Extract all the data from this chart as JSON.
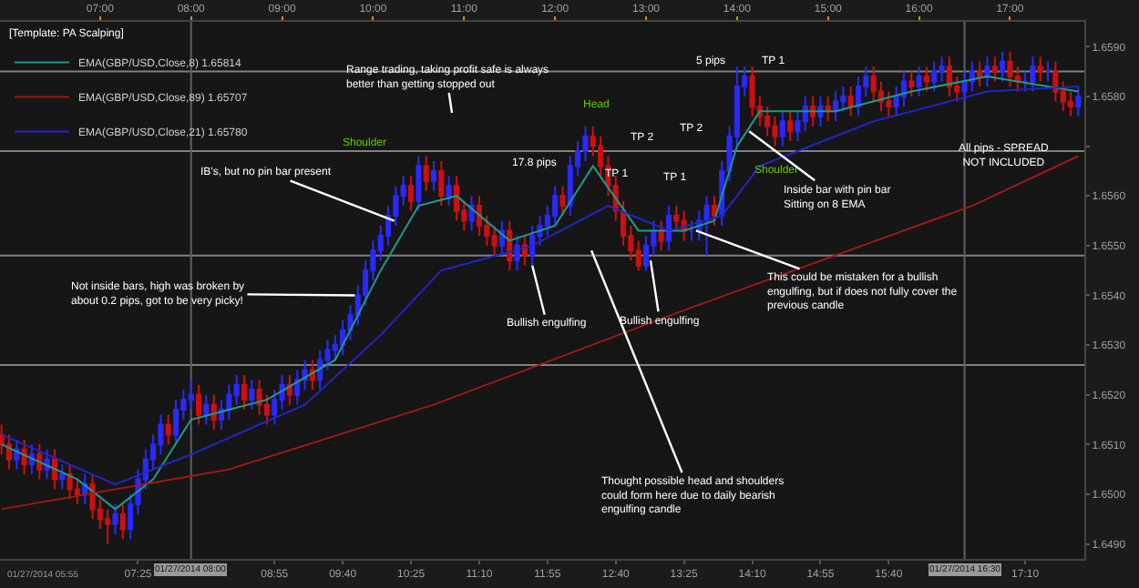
{
  "chart_data": {
    "type": "candlestick",
    "legend_title": "[Template: PA Scalping]",
    "legend": "top left",
    "grid": false,
    "colors": [
      "#cc1010",
      "#cc1010",
      "#2a2aff",
      "#cc1010",
      "#2a2aff",
      "#cc1010",
      "#2a2aff",
      "#cc1010",
      "#2a2aff",
      "#cc1010",
      "#cc1010",
      "#2a2aff",
      "#cc1010",
      "#cc1010",
      "#cc1010",
      "#2a2aff",
      "#cc1010",
      "#2a2aff",
      "#2a2aff",
      "#2a2aff",
      "#2a2aff",
      "#2a2aff",
      "#cc1010",
      "#2a2aff",
      "#2a2aff",
      "#2a2aff",
      "#cc1010",
      "#2a2aff",
      "#cc1010",
      "#2a2aff",
      "#2a2aff",
      "#2a2aff",
      "#cc1010",
      "#2a2aff",
      "#cc1010",
      "#cc1010",
      "#2a2aff",
      "#2a2aff",
      "#cc1010",
      "#2a2aff",
      "#2a2aff",
      "#cc1010",
      "#2a2aff",
      "#2a2aff",
      "#2a2aff",
      "#2a2aff",
      "#2a2aff",
      "#2a2aff",
      "#2a2aff",
      "#2a2aff",
      "#2a2aff",
      "#2a2aff",
      "#2a2aff",
      "#2a2aff",
      "#cc1010",
      "#2a2aff",
      "#cc1010",
      "#2a2aff",
      "#cc1010",
      "#2a2aff",
      "#cc1010",
      "#cc1010",
      "#2a2aff",
      "#cc1010",
      "#cc1010",
      "#cc1010",
      "#2a2aff",
      "#cc1010",
      "#2a2aff",
      "#cc1010",
      "#2a2aff",
      "#2a2aff",
      "#2a2aff",
      "#2a2aff",
      "#cc1010",
      "#2a2aff",
      "#2a2aff",
      "#2a2aff",
      "#cc1010",
      "#cc1010",
      "#cc1010",
      "#cc1010",
      "#cc1010",
      "#cc1010",
      "#cc1010",
      "#2a2aff",
      "#2a2aff",
      "#cc1010",
      "#2a2aff",
      "#cc1010",
      "#cc1010",
      "#2a2aff",
      "#2a2aff",
      "#2a2aff",
      "#cc1010",
      "#2a2aff",
      "#2a2aff",
      "#2a2aff",
      "#2a2aff",
      "#cc1010",
      "#cc1010",
      "#cc1010",
      "#cc1010",
      "#2a2aff",
      "#cc1010",
      "#2a2aff",
      "#2a2aff",
      "#cc1010",
      "#2a2aff",
      "#cc1010",
      "#2a2aff",
      "#2a2aff",
      "#cc1010",
      "#2a2aff",
      "#2a2aff",
      "#cc1010",
      "#cc1010",
      "#cc1010",
      "#2a2aff",
      "#2a2aff",
      "#cc1010",
      "#2a2aff",
      "#cc1010",
      "#2a2aff",
      "#2a2aff",
      "#cc1010",
      "#cc1010",
      "#2a2aff",
      "#2a2aff",
      "#cc1010",
      "#2a2aff",
      "#cc1010",
      "#2a2aff",
      "#cc1010",
      "#cc1010",
      "#2a2aff",
      "#2a2aff",
      "#cc1010",
      "#2a2aff",
      "#cc1010",
      "#cc1010",
      "#cc1010",
      "#2a2aff"
    ],
    "x": [
      "2014-01-27T05:55",
      "2014-01-27T06:00",
      "2014-01-27T06:05",
      "2014-01-27T06:10",
      "2014-01-27T06:15",
      "2014-01-27T06:20",
      "2014-01-27T06:25",
      "2014-01-27T06:30",
      "2014-01-27T06:35",
      "2014-01-27T06:40",
      "2014-01-27T06:45",
      "2014-01-27T06:50",
      "2014-01-27T06:55",
      "2014-01-27T07:00",
      "2014-01-27T07:05",
      "2014-01-27T07:10",
      "2014-01-27T07:15",
      "2014-01-27T07:20",
      "2014-01-27T07:25",
      "2014-01-27T07:30",
      "2014-01-27T07:35",
      "2014-01-27T07:40",
      "2014-01-27T07:45",
      "2014-01-27T07:50",
      "2014-01-27T07:55",
      "2014-01-27T08:00",
      "2014-01-27T08:05",
      "2014-01-27T08:10",
      "2014-01-27T08:15",
      "2014-01-27T08:20",
      "2014-01-27T08:25",
      "2014-01-27T08:30",
      "2014-01-27T08:35",
      "2014-01-27T08:40",
      "2014-01-27T08:45",
      "2014-01-27T08:50",
      "2014-01-27T08:55",
      "2014-01-27T09:00",
      "2014-01-27T09:05",
      "2014-01-27T09:10",
      "2014-01-27T09:15",
      "2014-01-27T09:20",
      "2014-01-27T09:25",
      "2014-01-27T09:30",
      "2014-01-27T09:35",
      "2014-01-27T09:40",
      "2014-01-27T09:45",
      "2014-01-27T09:50",
      "2014-01-27T09:55",
      "2014-01-27T10:00",
      "2014-01-27T10:05",
      "2014-01-27T10:10",
      "2014-01-27T10:15",
      "2014-01-27T10:20",
      "2014-01-27T10:25",
      "2014-01-27T10:30",
      "2014-01-27T10:35",
      "2014-01-27T10:40",
      "2014-01-27T10:45",
      "2014-01-27T10:50",
      "2014-01-27T10:55",
      "2014-01-27T11:00",
      "2014-01-27T11:05",
      "2014-01-27T11:10",
      "2014-01-27T11:15",
      "2014-01-27T11:20",
      "2014-01-27T11:25",
      "2014-01-27T11:30",
      "2014-01-27T11:35",
      "2014-01-27T11:40",
      "2014-01-27T11:45",
      "2014-01-27T11:50",
      "2014-01-27T11:55",
      "2014-01-27T12:00",
      "2014-01-27T12:05",
      "2014-01-27T12:10",
      "2014-01-27T12:15",
      "2014-01-27T12:20",
      "2014-01-27T12:25",
      "2014-01-27T12:30",
      "2014-01-27T12:35",
      "2014-01-27T12:40",
      "2014-01-27T12:45",
      "2014-01-27T12:50",
      "2014-01-27T12:55",
      "2014-01-27T13:00",
      "2014-01-27T13:05",
      "2014-01-27T13:10",
      "2014-01-27T13:15",
      "2014-01-27T13:20",
      "2014-01-27T13:25",
      "2014-01-27T13:30",
      "2014-01-27T13:35",
      "2014-01-27T13:40",
      "2014-01-27T13:45",
      "2014-01-27T13:50",
      "2014-01-27T13:55",
      "2014-01-27T14:00",
      "2014-01-27T14:05",
      "2014-01-27T14:10",
      "2014-01-27T14:15",
      "2014-01-27T14:20",
      "2014-01-27T14:25",
      "2014-01-27T14:30",
      "2014-01-27T14:35",
      "2014-01-27T14:40",
      "2014-01-27T14:45",
      "2014-01-27T14:50",
      "2014-01-27T14:55",
      "2014-01-27T15:00",
      "2014-01-27T15:05",
      "2014-01-27T15:10",
      "2014-01-27T15:15",
      "2014-01-27T15:20",
      "2014-01-27T15:25",
      "2014-01-27T15:30",
      "2014-01-27T15:35",
      "2014-01-27T15:40",
      "2014-01-27T15:45",
      "2014-01-27T15:50",
      "2014-01-27T15:55",
      "2014-01-27T16:00",
      "2014-01-27T16:05",
      "2014-01-27T16:10",
      "2014-01-27T16:15",
      "2014-01-27T16:20",
      "2014-01-27T16:25",
      "2014-01-27T16:30",
      "2014-01-27T16:35",
      "2014-01-27T16:40",
      "2014-01-27T16:45",
      "2014-01-27T16:50",
      "2014-01-27T16:55",
      "2014-01-27T17:00",
      "2014-01-27T17:05",
      "2014-01-27T17:10",
      "2014-01-27T17:15",
      "2014-01-27T17:20",
      "2014-01-27T17:25",
      "2014-01-27T17:30",
      "2014-01-27T17:35",
      "2014-01-27T17:40",
      "2014-01-27T17:45"
    ],
    "ohlc": [
      [
        1.6512,
        1.6514,
        1.6508,
        1.651
      ],
      [
        1.651,
        1.6512,
        1.6505,
        1.6507
      ],
      [
        1.6507,
        1.6511,
        1.6505,
        1.6509
      ],
      [
        1.6509,
        1.6511,
        1.6504,
        1.6506
      ],
      [
        1.6506,
        1.651,
        1.6504,
        1.6508
      ],
      [
        1.6508,
        1.651,
        1.6503,
        1.6505
      ],
      [
        1.6505,
        1.6509,
        1.6503,
        1.6507
      ],
      [
        1.6507,
        1.6509,
        1.6501,
        1.6503
      ],
      [
        1.6503,
        1.6506,
        1.6501,
        1.6504
      ],
      [
        1.6504,
        1.6506,
        1.6499,
        1.6501
      ],
      [
        1.6501,
        1.6503,
        1.6498,
        1.65
      ],
      [
        1.65,
        1.6504,
        1.6498,
        1.6502
      ],
      [
        1.6502,
        1.6504,
        1.6495,
        1.6497
      ],
      [
        1.6497,
        1.6499,
        1.6493,
        1.6495
      ],
      [
        1.6495,
        1.6497,
        1.649,
        1.6494
      ],
      [
        1.6494,
        1.6498,
        1.6492,
        1.6496
      ],
      [
        1.6496,
        1.6498,
        1.6491,
        1.6493
      ],
      [
        1.6493,
        1.65,
        1.6491,
        1.6498
      ],
      [
        1.6498,
        1.6505,
        1.6496,
        1.6503
      ],
      [
        1.6503,
        1.6509,
        1.6501,
        1.6507
      ],
      [
        1.6507,
        1.6512,
        1.6505,
        1.651
      ],
      [
        1.651,
        1.6516,
        1.6508,
        1.6514
      ],
      [
        1.6514,
        1.6516,
        1.651,
        1.6512
      ],
      [
        1.6512,
        1.6519,
        1.651,
        1.6517
      ],
      [
        1.6517,
        1.6521,
        1.6515,
        1.6519
      ],
      [
        1.6519,
        1.6523,
        1.6517,
        1.652
      ],
      [
        1.652,
        1.6522,
        1.6514,
        1.6516
      ],
      [
        1.6516,
        1.652,
        1.6514,
        1.6518
      ],
      [
        1.6518,
        1.652,
        1.6513,
        1.6515
      ],
      [
        1.6515,
        1.6519,
        1.6513,
        1.6517
      ],
      [
        1.6517,
        1.6522,
        1.6515,
        1.652
      ],
      [
        1.652,
        1.6524,
        1.6518,
        1.6522
      ],
      [
        1.6522,
        1.6524,
        1.6517,
        1.6519
      ],
      [
        1.6519,
        1.6523,
        1.6517,
        1.6521
      ],
      [
        1.6521,
        1.6523,
        1.6516,
        1.6518
      ],
      [
        1.6518,
        1.652,
        1.6514,
        1.6516
      ],
      [
        1.6516,
        1.6521,
        1.6514,
        1.6519
      ],
      [
        1.6519,
        1.6524,
        1.6517,
        1.6522
      ],
      [
        1.6522,
        1.6524,
        1.6518,
        1.652
      ],
      [
        1.652,
        1.6525,
        1.6518,
        1.6523
      ],
      [
        1.6523,
        1.6527,
        1.6521,
        1.6525
      ],
      [
        1.6525,
        1.6527,
        1.6521,
        1.6523
      ],
      [
        1.6523,
        1.6529,
        1.6521,
        1.6527
      ],
      [
        1.6527,
        1.6531,
        1.6525,
        1.6529
      ],
      [
        1.6529,
        1.6532,
        1.6527,
        1.653
      ],
      [
        1.653,
        1.6535,
        1.6528,
        1.6533
      ],
      [
        1.6533,
        1.6538,
        1.6531,
        1.6536
      ],
      [
        1.6536,
        1.6542,
        1.6534,
        1.654
      ],
      [
        1.654,
        1.6547,
        1.6538,
        1.6545
      ],
      [
        1.6545,
        1.6551,
        1.6543,
        1.6549
      ],
      [
        1.6549,
        1.6554,
        1.6547,
        1.6552
      ],
      [
        1.6552,
        1.6558,
        1.655,
        1.6556
      ],
      [
        1.6556,
        1.6562,
        1.6554,
        1.656
      ],
      [
        1.656,
        1.6564,
        1.6558,
        1.6562
      ],
      [
        1.6562,
        1.6564,
        1.6557,
        1.6559
      ],
      [
        1.6559,
        1.6568,
        1.6557,
        1.6566
      ],
      [
        1.6566,
        1.6568,
        1.6561,
        1.6563
      ],
      [
        1.6563,
        1.6567,
        1.6561,
        1.6565
      ],
      [
        1.6565,
        1.6567,
        1.6558,
        1.656
      ],
      [
        1.656,
        1.6564,
        1.6558,
        1.6562
      ],
      [
        1.6562,
        1.6564,
        1.6555,
        1.6557
      ],
      [
        1.6557,
        1.6559,
        1.6553,
        1.6555
      ],
      [
        1.6555,
        1.656,
        1.6553,
        1.6558
      ],
      [
        1.6558,
        1.656,
        1.6552,
        1.6554
      ],
      [
        1.6554,
        1.6556,
        1.655,
        1.6552
      ],
      [
        1.6552,
        1.6554,
        1.6548,
        1.655
      ],
      [
        1.655,
        1.6555,
        1.6548,
        1.6553
      ],
      [
        1.6553,
        1.6555,
        1.6545,
        1.6547
      ],
      [
        1.6547,
        1.6552,
        1.6545,
        1.655
      ],
      [
        1.655,
        1.6552,
        1.6546,
        1.6548
      ],
      [
        1.6548,
        1.6554,
        1.6546,
        1.6552
      ],
      [
        1.6552,
        1.6556,
        1.655,
        1.6554
      ],
      [
        1.6554,
        1.6558,
        1.6552,
        1.6556
      ],
      [
        1.6556,
        1.6562,
        1.6554,
        1.656
      ],
      [
        1.656,
        1.6562,
        1.6556,
        1.6558
      ],
      [
        1.6558,
        1.6568,
        1.6556,
        1.6566
      ],
      [
        1.6566,
        1.6571,
        1.6564,
        1.6569
      ],
      [
        1.6569,
        1.6574,
        1.6567,
        1.6572
      ],
      [
        1.6572,
        1.6574,
        1.6568,
        1.657
      ],
      [
        1.657,
        1.6572,
        1.6564,
        1.6566
      ],
      [
        1.6566,
        1.6568,
        1.656,
        1.6562
      ],
      [
        1.6562,
        1.6564,
        1.6555,
        1.6557
      ],
      [
        1.6557,
        1.6559,
        1.655,
        1.6552
      ],
      [
        1.6552,
        1.6554,
        1.6547,
        1.6549
      ],
      [
        1.6549,
        1.6551,
        1.6545,
        1.6546
      ],
      [
        1.6546,
        1.6552,
        1.6545,
        1.655
      ],
      [
        1.655,
        1.6555,
        1.6548,
        1.6553
      ],
      [
        1.6553,
        1.6555,
        1.6549,
        1.6551
      ],
      [
        1.6551,
        1.6558,
        1.6549,
        1.6556
      ],
      [
        1.6556,
        1.6558,
        1.6553,
        1.6555
      ],
      [
        1.6555,
        1.6557,
        1.6551,
        1.6553
      ],
      [
        1.6553,
        1.6555,
        1.6551,
        1.6553
      ],
      [
        1.6553,
        1.6557,
        1.6551,
        1.6555
      ],
      [
        1.6555,
        1.656,
        1.6548,
        1.6558
      ],
      [
        1.6558,
        1.656,
        1.6554,
        1.6556
      ],
      [
        1.6556,
        1.6567,
        1.6554,
        1.6565
      ],
      [
        1.6565,
        1.6574,
        1.6563,
        1.6572
      ],
      [
        1.6572,
        1.6586,
        1.657,
        1.6582
      ],
      [
        1.6582,
        1.6586,
        1.658,
        1.6584
      ],
      [
        1.6584,
        1.6586,
        1.6576,
        1.6578
      ],
      [
        1.6578,
        1.658,
        1.6574,
        1.6576
      ],
      [
        1.6576,
        1.6578,
        1.6572,
        1.6574
      ],
      [
        1.6574,
        1.6576,
        1.657,
        1.6572
      ],
      [
        1.6572,
        1.6577,
        1.657,
        1.6575
      ],
      [
        1.6575,
        1.6577,
        1.6571,
        1.6573
      ],
      [
        1.6573,
        1.6577,
        1.6571,
        1.6575
      ],
      [
        1.6575,
        1.658,
        1.6573,
        1.6578
      ],
      [
        1.6578,
        1.658,
        1.6574,
        1.6576
      ],
      [
        1.6576,
        1.658,
        1.6574,
        1.6578
      ],
      [
        1.6578,
        1.658,
        1.6575,
        1.6577
      ],
      [
        1.6577,
        1.6581,
        1.6575,
        1.6579
      ],
      [
        1.6579,
        1.6582,
        1.6577,
        1.658
      ],
      [
        1.658,
        1.6582,
        1.6576,
        1.6578
      ],
      [
        1.6578,
        1.6584,
        1.6576,
        1.6582
      ],
      [
        1.6582,
        1.6586,
        1.658,
        1.6584
      ],
      [
        1.6584,
        1.6586,
        1.6579,
        1.6581
      ],
      [
        1.6581,
        1.6583,
        1.6577,
        1.6579
      ],
      [
        1.6579,
        1.6581,
        1.6576,
        1.6578
      ],
      [
        1.6578,
        1.6582,
        1.6576,
        1.658
      ],
      [
        1.658,
        1.6585,
        1.6578,
        1.6583
      ],
      [
        1.6583,
        1.6585,
        1.658,
        1.6582
      ],
      [
        1.6582,
        1.6586,
        1.658,
        1.6584
      ],
      [
        1.6584,
        1.6586,
        1.6581,
        1.6583
      ],
      [
        1.6583,
        1.6587,
        1.6581,
        1.6585
      ],
      [
        1.6585,
        1.6588,
        1.6583,
        1.6586
      ],
      [
        1.6586,
        1.6588,
        1.658,
        1.6582
      ],
      [
        1.6582,
        1.6584,
        1.6579,
        1.6581
      ],
      [
        1.6581,
        1.6585,
        1.6579,
        1.6583
      ],
      [
        1.6583,
        1.6587,
        1.6581,
        1.6585
      ],
      [
        1.6585,
        1.6587,
        1.6582,
        1.6584
      ],
      [
        1.6584,
        1.6588,
        1.6582,
        1.6586
      ],
      [
        1.6586,
        1.6588,
        1.6583,
        1.6585
      ],
      [
        1.6585,
        1.6589,
        1.6583,
        1.6587
      ],
      [
        1.6587,
        1.6589,
        1.6582,
        1.6584
      ],
      [
        1.6584,
        1.6586,
        1.6581,
        1.6583
      ],
      [
        1.6583,
        1.6585,
        1.6581,
        1.6583
      ],
      [
        1.6583,
        1.6588,
        1.6581,
        1.6586
      ],
      [
        1.6586,
        1.6588,
        1.6583,
        1.6585
      ],
      [
        1.6585,
        1.6587,
        1.6583,
        1.6585
      ],
      [
        1.6585,
        1.6587,
        1.6579,
        1.6581
      ],
      [
        1.6581,
        1.6583,
        1.6577,
        1.6579
      ],
      [
        1.6579,
        1.6581,
        1.6576,
        1.6578
      ],
      [
        1.6578,
        1.6582,
        1.6576,
        1.658
      ]
    ],
    "series": [
      {
        "type": "line",
        "name": "EMA(GBP/USD,Close,8) 1.65814",
        "color": "#1f9a8a",
        "x": [
          "2014-01-27T05:55",
          "2014-01-27T06:45",
          "2014-01-27T07:10",
          "2014-01-27T07:35",
          "2014-01-27T08:00",
          "2014-01-27T08:50",
          "2014-01-27T09:35",
          "2014-01-27T10:05",
          "2014-01-27T10:30",
          "2014-01-27T10:55",
          "2014-01-27T11:30",
          "2014-01-27T12:00",
          "2014-01-27T12:25",
          "2014-01-27T12:55",
          "2014-01-27T13:25",
          "2014-01-27T13:45",
          "2014-01-27T14:00",
          "2014-01-27T14:15",
          "2014-01-27T15:05",
          "2014-01-27T15:55",
          "2014-01-27T16:45",
          "2014-01-27T17:45"
        ],
        "values": [
          1.651,
          1.6503,
          1.6497,
          1.6503,
          1.6515,
          1.6519,
          1.6527,
          1.6545,
          1.6558,
          1.656,
          1.6551,
          1.6554,
          1.6566,
          1.6553,
          1.6553,
          1.6555,
          1.657,
          1.6577,
          1.6577,
          1.6581,
          1.6584,
          1.6581
        ]
      },
      {
        "type": "line",
        "name": "EMA(GBP/USD,Close,89) 1.65707",
        "color": "#a01818",
        "x": [
          "2014-01-27T05:55",
          "2014-01-27T08:25",
          "2014-01-27T10:40",
          "2014-01-27T13:25",
          "2014-01-27T16:35",
          "2014-01-27T17:45"
        ],
        "values": [
          1.6497,
          1.6505,
          1.6518,
          1.6537,
          1.6558,
          1.6568
        ]
      },
      {
        "type": "line",
        "name": "EMA(GBP/USD,Close,21) 1.65780",
        "color": "#2424c8",
        "x": [
          "2014-01-27T05:55",
          "2014-01-27T07:10",
          "2014-01-27T08:00",
          "2014-01-27T09:15",
          "2014-01-27T10:05",
          "2014-01-27T10:45",
          "2014-01-27T11:45",
          "2014-01-27T12:35",
          "2014-01-27T13:15",
          "2014-01-27T13:50",
          "2014-01-27T14:15",
          "2014-01-27T15:30",
          "2014-01-27T16:45",
          "2014-01-27T17:45"
        ],
        "values": [
          1.6512,
          1.6502,
          1.6508,
          1.6518,
          1.6532,
          1.6545,
          1.655,
          1.6558,
          1.6553,
          1.6556,
          1.6566,
          1.6575,
          1.6581,
          1.6582
        ]
      }
    ],
    "xlim": [
      "2014-01-27T05:54",
      "2014-01-27T17:49"
    ],
    "xticks": [
      {
        "value": "2014-01-27T07:25",
        "label": "07:25"
      },
      {
        "value": "2014-01-27T08:55",
        "label": "08:55"
      },
      {
        "value": "2014-01-27T09:40",
        "label": "09:40"
      },
      {
        "value": "2014-01-27T10:25",
        "label": "10:25"
      },
      {
        "value": "2014-01-27T11:10",
        "label": "11:10"
      },
      {
        "value": "2014-01-27T11:55",
        "label": "11:55"
      },
      {
        "value": "2014-01-27T12:40",
        "label": "12:40"
      },
      {
        "value": "2014-01-27T13:25",
        "label": "13:25"
      },
      {
        "value": "2014-01-27T14:10",
        "label": "14:10"
      },
      {
        "value": "2014-01-27T14:55",
        "label": "14:55"
      },
      {
        "value": "2014-01-27T15:40",
        "label": "15:40"
      },
      {
        "value": "2014-01-27T17:10",
        "label": "17:10"
      }
    ],
    "x2lim": [
      "2014-01-27T05:54",
      "2014-01-27T17:49"
    ],
    "x2ticks": [
      {
        "value": "2014-01-27T07:00",
        "label": "07:00"
      },
      {
        "value": "2014-01-27T08:00",
        "label": "08:00"
      },
      {
        "value": "2014-01-27T09:00",
        "label": "09:00"
      },
      {
        "value": "2014-01-27T10:00",
        "label": "10:00"
      },
      {
        "value": "2014-01-27T11:00",
        "label": "11:00"
      },
      {
        "value": "2014-01-27T12:00",
        "label": "12:00"
      },
      {
        "value": "2014-01-27T13:00",
        "label": "13:00"
      },
      {
        "value": "2014-01-27T14:00",
        "label": "14:00"
      },
      {
        "value": "2014-01-27T15:00",
        "label": "15:00"
      },
      {
        "value": "2014-01-27T16:00",
        "label": "16:00"
      },
      {
        "value": "2014-01-27T17:00",
        "label": "17:00"
      }
    ],
    "ylim": [
      1.6487,
      1.6595
    ],
    "yticks": [
      {
        "value": 1.649,
        "label": "1.6490"
      },
      {
        "value": 1.65,
        "label": "1.6500"
      },
      {
        "value": 1.651,
        "label": "1.6510"
      },
      {
        "value": 1.652,
        "label": "1.6520"
      },
      {
        "value": 1.653,
        "label": "1.6530"
      },
      {
        "value": 1.654,
        "label": "1.6540"
      },
      {
        "value": 1.655,
        "label": "1.6550"
      },
      {
        "value": 1.656,
        "label": "1.6560"
      },
      {
        "value": 1.657,
        "label": null
      },
      {
        "value": 1.658,
        "label": "1.6580"
      },
      {
        "value": 1.659,
        "label": "1.6590"
      }
    ],
    "ref_lines": [
      {
        "axis": "y",
        "value": 1.6585,
        "color": "#808080"
      },
      {
        "axis": "y",
        "value": 1.6569,
        "color": "#808080"
      },
      {
        "axis": "y",
        "value": 1.6548,
        "color": "#808080"
      },
      {
        "axis": "y",
        "value": 1.6526,
        "color": "#808080"
      },
      {
        "axis": "x",
        "value": "2014-01-27T08:00",
        "label": "01/27/2014 08:00",
        "color": "#606060"
      },
      {
        "axis": "x",
        "value": "2014-01-27T16:30",
        "label": "01/27/2014 16:30",
        "color": "#606060"
      }
    ],
    "annotations": [
      "Range trading, taking profit safe is always\nbetter than getting stopped out",
      "Head",
      "Shoulder",
      "Shoulder",
      "TP 2",
      "TP 1",
      "TP 2",
      "TP 1",
      "5 pips",
      "TP 1",
      "17.8 pips",
      {
        "text": "IB's, but no pin bar present",
        "x": "2014-01-27T10:14",
        "y": 1.6555
      },
      {
        "text": "Inside bar with pin bar\nSitting on 8 EMA",
        "x": "2014-01-27T14:08",
        "y": 1.6573
      },
      {
        "text": "Not inside bars, high was broken by\nabout 0.2 pips, got to be very picky!",
        "x": "2014-01-27T09:48",
        "y": 1.654
      },
      {
        "text": "This could be mistaken for a bullish\nengulfing, but if does not fully cover the\nprevious candle",
        "x": "2014-01-27T13:33",
        "y": 1.6553
      },
      {
        "text": "Bullish engulfing",
        "x": "2014-01-27T11:45",
        "y": 1.6546
      },
      {
        "text": "Bullish engulfing",
        "x": "2014-01-27T13:03",
        "y": 1.6547
      },
      {
        "text": "Thought possible head and shoulders\ncould form here due to daily bearish\nengulfing candle",
        "x": "2014-01-27T12:24",
        "y": 1.6549
      },
      "All pips - SPREAD\nNOT INCLUDED",
      "01/27/2014 05:55"
    ]
  }
}
